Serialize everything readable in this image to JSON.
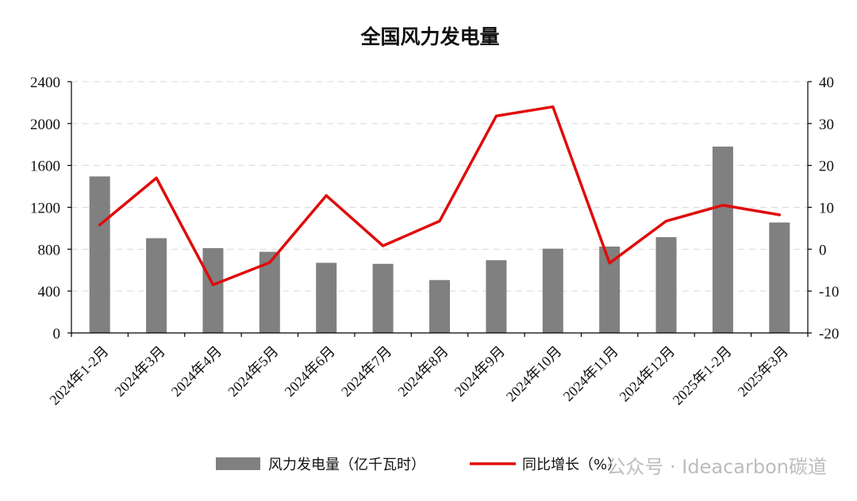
{
  "chart_data": {
    "type": "bar",
    "title": "全国风力发电量",
    "categories": [
      "2024年1-2月",
      "2024年3月",
      "2024年4月",
      "2024年5月",
      "2024年6月",
      "2024年7月",
      "2024年8月",
      "2024年9月",
      "2024年10月",
      "2024年11月",
      "2024年12月",
      "2025年1-2月",
      "2025年3月"
    ],
    "series": [
      {
        "name": "风力发电量（亿千瓦时）",
        "type": "bar",
        "axis": "left",
        "color": "#808080",
        "values": [
          1495,
          905,
          810,
          775,
          670,
          660,
          505,
          695,
          805,
          825,
          915,
          1780,
          1055
        ]
      },
      {
        "name": "同比增长（%）",
        "type": "line",
        "axis": "right",
        "color": "#e00b0b",
        "values": [
          5.8,
          17.0,
          -8.5,
          -3.2,
          12.8,
          0.8,
          6.7,
          31.8,
          34.0,
          -3.3,
          6.7,
          10.5,
          8.2
        ]
      }
    ],
    "y_left": {
      "ticks": [
        0,
        400,
        800,
        1200,
        1600,
        2000,
        2400
      ],
      "lim": [
        0,
        2400
      ]
    },
    "y_right": {
      "ticks": [
        -20,
        -10,
        0,
        10,
        20,
        30,
        40
      ],
      "lim": [
        -20,
        40
      ]
    },
    "grid": true,
    "legend_position": "bottom"
  },
  "watermark": {
    "text": "公众号 · Ideacarbon碳道"
  }
}
